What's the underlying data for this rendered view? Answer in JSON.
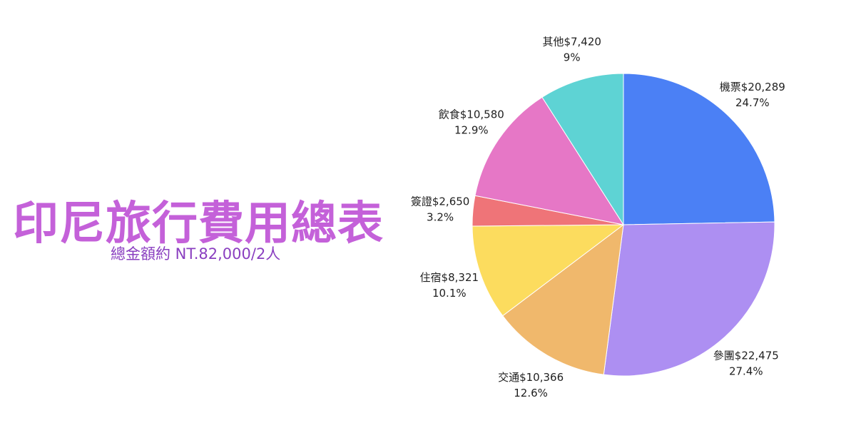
{
  "title": "印尼旅行費用總表",
  "subtitle": "總金額約 NT.82,000/2人",
  "colors": {
    "title": "#c461d9",
    "subtitle": "#8a3fc0"
  },
  "chart_data": {
    "type": "pie",
    "slices": [
      {
        "name": "機票",
        "value": 20289,
        "amount_label": "$20,289",
        "percent_label": "24.7%",
        "color": "#4b80f5"
      },
      {
        "name": "參團",
        "value": 22475,
        "amount_label": "$22,475",
        "percent_label": "27.4%",
        "color": "#ad8ff2"
      },
      {
        "name": "交通",
        "value": 10366,
        "amount_label": "$10,366",
        "percent_label": "12.6%",
        "color": "#f0b86c"
      },
      {
        "name": "住宿",
        "value": 8321,
        "amount_label": "$8,321",
        "percent_label": "10.1%",
        "color": "#fcdc5e"
      },
      {
        "name": "簽證",
        "value": 2650,
        "amount_label": "$2,650",
        "percent_label": "3.2%",
        "color": "#ef7478"
      },
      {
        "name": "飲食",
        "value": 10580,
        "amount_label": "$10,580",
        "percent_label": "12.9%",
        "color": "#e677c6"
      },
      {
        "name": "其他",
        "value": 7420,
        "amount_label": "$7,420",
        "percent_label": "9%",
        "color": "#5ed3d4"
      }
    ]
  }
}
